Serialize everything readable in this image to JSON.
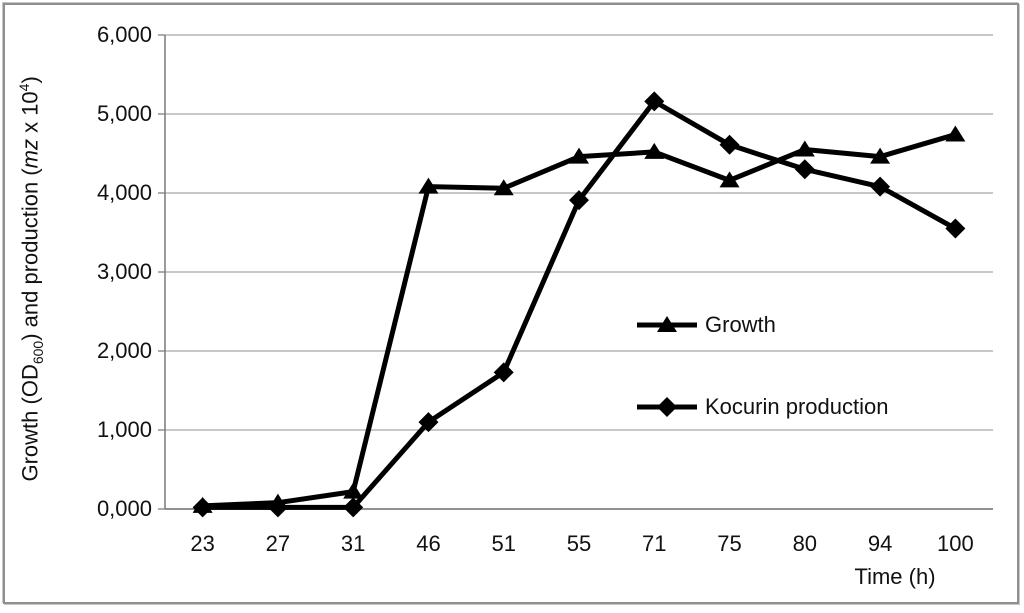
{
  "figure": {
    "background_color": "#ffffff",
    "border_color": "#8f8f8f",
    "gridline_color": "#a6a6a6",
    "axis_color": "#808080",
    "series_color": "#000000"
  },
  "chart_data": {
    "type": "line",
    "title": "",
    "xlabel": "Time (h)",
    "ylabel": {
      "part1": "Growth (OD",
      "sub": "600",
      "part2": ") and production (",
      "italic": "mz",
      "part3": " x 10",
      "sup": "4",
      "part4": ")"
    },
    "categories": [
      "23",
      "27",
      "31",
      "46",
      "51",
      "55",
      "71",
      "75",
      "80",
      "94",
      "100"
    ],
    "y_tick_labels": [
      "0,000",
      "1,000",
      "2,000",
      "3,000",
      "4,000",
      "5,000",
      "6,000"
    ],
    "ylim": [
      0,
      6
    ],
    "y_step": 1,
    "grid": "horizontal",
    "legend_position": "inside-right",
    "series": [
      {
        "name": "Growth",
        "marker": "triangle",
        "color": "#000000",
        "values": [
          0.04,
          0.08,
          0.22,
          4.08,
          4.06,
          4.46,
          4.52,
          4.16,
          4.55,
          4.46,
          4.74
        ]
      },
      {
        "name": "Kocurin production",
        "marker": "diamond",
        "color": "#000000",
        "values": [
          0.02,
          0.02,
          0.02,
          1.1,
          1.73,
          3.91,
          5.16,
          4.61,
          4.3,
          4.08,
          3.55
        ]
      }
    ]
  }
}
